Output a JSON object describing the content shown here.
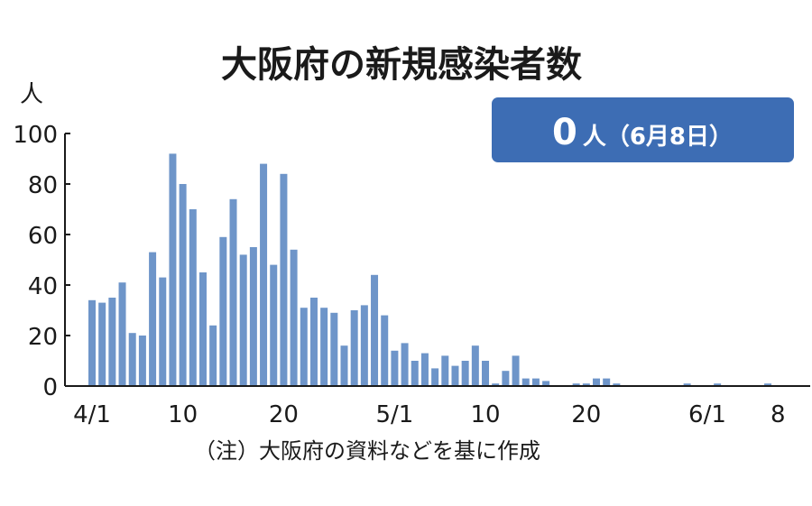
{
  "title": "大阪府の新規感染者数",
  "unit": "人",
  "badge": {
    "value": "0",
    "unit_text": "人（6月8日）",
    "color": "#3d6db4"
  },
  "note": "（注）大阪府の資料などを基に作成",
  "colors": {
    "bar": "#6e95c9",
    "axis": "#1a1a1a"
  },
  "chart_data": {
    "type": "bar",
    "title": "大阪府の新規感染者数",
    "ylabel": "人",
    "xlabel": "",
    "ylim": [
      0,
      100
    ],
    "yticks": [
      0,
      20,
      40,
      60,
      80,
      100
    ],
    "xticks": [
      {
        "day": 0,
        "label": "4/1"
      },
      {
        "day": 9,
        "label": "10"
      },
      {
        "day": 19,
        "label": "20"
      },
      {
        "day": 30,
        "label": "5/1"
      },
      {
        "day": 39,
        "label": "10"
      },
      {
        "day": 49,
        "label": "20"
      },
      {
        "day": 61,
        "label": "6/1"
      },
      {
        "day": 68,
        "label": "8"
      }
    ],
    "start_date": "2020-04-01",
    "values": [
      34,
      33,
      35,
      41,
      21,
      20,
      53,
      43,
      92,
      80,
      70,
      45,
      24,
      59,
      74,
      52,
      55,
      88,
      48,
      84,
      54,
      31,
      35,
      31,
      29,
      16,
      30,
      32,
      44,
      28,
      14,
      17,
      10,
      13,
      7,
      12,
      8,
      10,
      16,
      10,
      1,
      6,
      12,
      3,
      3,
      2,
      0,
      0,
      1,
      1,
      3,
      3,
      1,
      0,
      0,
      0,
      0,
      0,
      0,
      1,
      0,
      0,
      1,
      0,
      0,
      0,
      0,
      1,
      0
    ]
  }
}
